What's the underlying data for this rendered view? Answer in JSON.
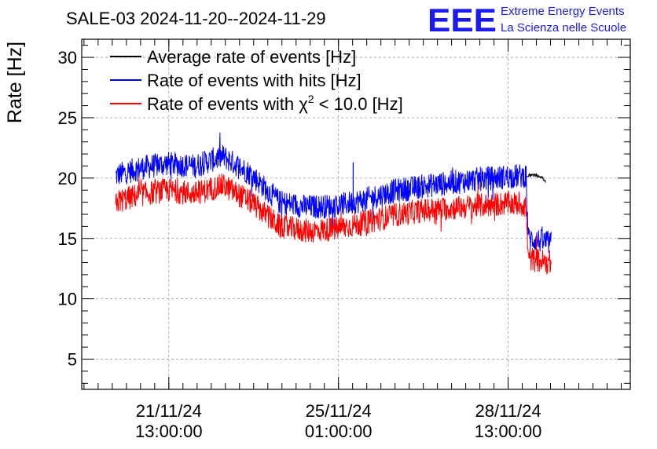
{
  "header": {
    "title": "SALE-03 2024-11-20--2024-11-29",
    "logo_text": "EEE",
    "brand_line1": "Extreme Energy Events",
    "brand_line2": "La Scienza nelle Scuole",
    "brand_color": "#1a1aee"
  },
  "chart_data": {
    "type": "line",
    "ylabel": "Rate [Hz]",
    "xlabel": "",
    "ylim": [
      2.5,
      31.5
    ],
    "yticks": [
      5,
      10,
      15,
      20,
      25,
      30
    ],
    "ytick_labels": [
      "5",
      "10",
      "15",
      "20",
      "25",
      "30"
    ],
    "xlim_days": [
      0,
      9.7
    ],
    "xtick_positions_days": [
      1.54,
      4.54,
      7.54
    ],
    "xtick_labels": [
      [
        "21/11/24",
        "13:00:00"
      ],
      [
        "25/11/24",
        "01:00:00"
      ],
      [
        "28/11/24",
        "13:00:00"
      ]
    ],
    "grid": true,
    "legend_position": "top-left",
    "series": [
      {
        "name": "Average rate of events [Hz]",
        "color": "#000000",
        "x": [
          7.87,
          7.95,
          8.05,
          8.15,
          8.2
        ],
        "y": [
          20.1,
          20.3,
          20.2,
          20.0,
          19.7
        ]
      },
      {
        "name": "Rate of events with hits [Hz]",
        "color": "#0000ff",
        "x": [
          0.6,
          1.0,
          1.5,
          2.0,
          2.5,
          3.0,
          3.5,
          4.0,
          4.5,
          5.0,
          5.5,
          6.0,
          6.5,
          7.0,
          7.5,
          7.85,
          7.9,
          8.3
        ],
        "y": [
          20.2,
          20.8,
          21.2,
          21.0,
          21.8,
          20.3,
          18.0,
          17.6,
          17.7,
          18.2,
          18.9,
          19.3,
          19.6,
          19.9,
          20.1,
          20.2,
          15.0,
          14.6
        ],
        "spread": 1.0
      },
      {
        "name": "Rate of events with χ2 < 10.0 [Hz]",
        "color": "#ff0000",
        "x": [
          0.6,
          1.0,
          1.5,
          2.0,
          2.5,
          3.0,
          3.5,
          4.0,
          4.5,
          5.0,
          5.5,
          6.0,
          6.5,
          7.0,
          7.5,
          7.85,
          7.9,
          8.3
        ],
        "y": [
          18.0,
          18.6,
          19.0,
          18.7,
          19.4,
          18.0,
          16.0,
          15.6,
          15.8,
          16.3,
          16.9,
          17.3,
          17.5,
          17.7,
          17.9,
          17.8,
          13.3,
          13.0
        ],
        "spread": 1.0
      }
    ],
    "legend": [
      {
        "label": "Average rate of events [Hz]",
        "color": "#000000"
      },
      {
        "label": "Rate of events with hits [Hz]",
        "color": "#0000ff"
      },
      {
        "label_main": "Rate of events with χ",
        "label_sup": "2",
        "label_tail": " < 10.0 [Hz]",
        "color": "#ff0000"
      }
    ]
  }
}
